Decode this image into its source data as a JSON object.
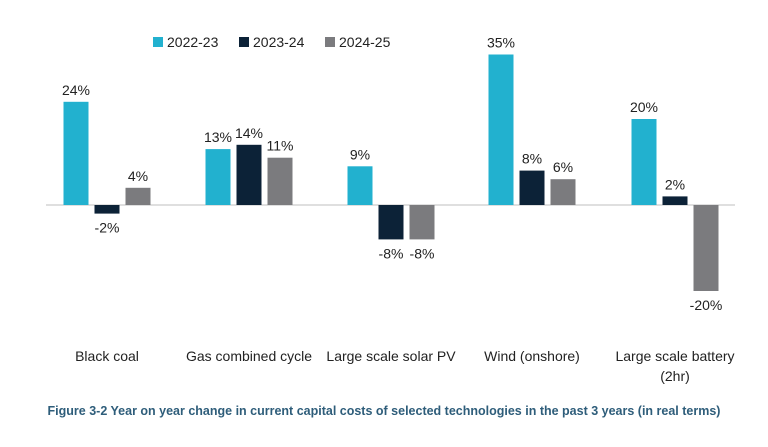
{
  "chart_data": {
    "type": "bar",
    "categories": [
      "Black coal",
      "Gas combined cycle",
      "Large scale solar PV",
      "Wind (onshore)",
      "Large scale battery (2hr)"
    ],
    "category_lines": [
      [
        "Black coal"
      ],
      [
        "Gas combined cycle"
      ],
      [
        "Large scale solar PV"
      ],
      [
        "Wind (onshore)"
      ],
      [
        "Large scale battery",
        "(2hr)"
      ]
    ],
    "series": [
      {
        "name": "2022-23",
        "color": "#22b1cf",
        "values": [
          24,
          13,
          9,
          35,
          20
        ],
        "labels": [
          "24%",
          "13%",
          "9%",
          "35%",
          "20%"
        ]
      },
      {
        "name": "2023-24",
        "color": "#0c2237",
        "values": [
          -2,
          14,
          -8,
          8,
          2
        ],
        "labels": [
          "-2%",
          "14%",
          "-8%",
          "8%",
          "2%"
        ]
      },
      {
        "name": "2024-25",
        "color": "#7b7b7e",
        "values": [
          4,
          11,
          -8,
          6,
          -20
        ],
        "labels": [
          "4%",
          "11%",
          "-8%",
          "6%",
          "-20%"
        ]
      }
    ],
    "ylim": [
      -20,
      35
    ],
    "unit": "%",
    "legend_position": "top",
    "grid": false,
    "title": "Figure 3-2 Year on year change in current capital costs of selected technologies in the past 3 years (in real terms)"
  }
}
